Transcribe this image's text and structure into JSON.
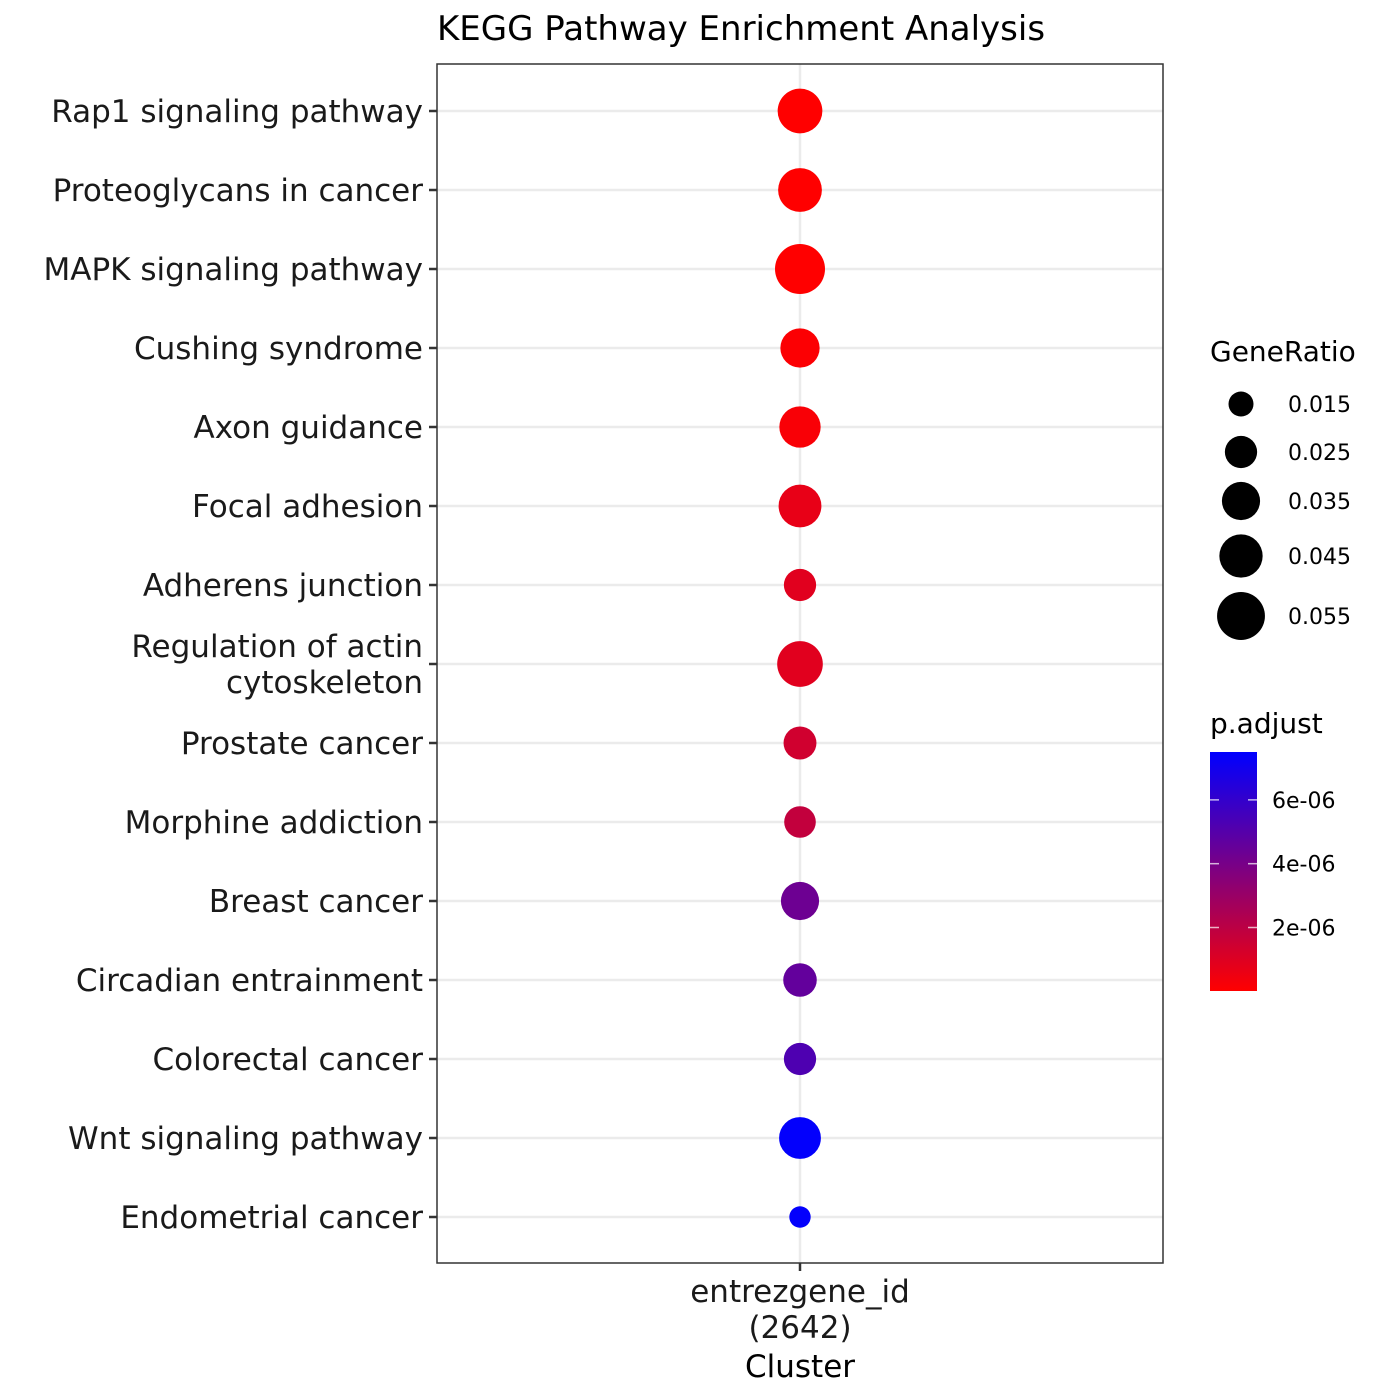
{
  "chart_data": {
    "type": "scatter",
    "title": "KEGG Pathway Enrichment Analysis",
    "x_category": "entrezgene_id\n(2642)",
    "xlabel": "Cluster",
    "ylabel": "",
    "points": [
      {
        "term": "Rap1 signaling pathway",
        "gene_ratio": 0.048,
        "p_adjust": 1e-08
      },
      {
        "term": "Proteoglycans in cancer",
        "gene_ratio": 0.046,
        "p_adjust": 1e-08
      },
      {
        "term": "MAPK signaling pathway",
        "gene_ratio": 0.06,
        "p_adjust": 2e-08
      },
      {
        "term": "Cushing syndrome",
        "gene_ratio": 0.037,
        "p_adjust": 1e-07
      },
      {
        "term": "Axon guidance",
        "gene_ratio": 0.041,
        "p_adjust": 2e-07
      },
      {
        "term": "Focal adhesion",
        "gene_ratio": 0.044,
        "p_adjust": 7e-07
      },
      {
        "term": "Adherens junction",
        "gene_ratio": 0.025,
        "p_adjust": 9e-07
      },
      {
        "term": "Regulation of actin\ncytoskeleton",
        "gene_ratio": 0.05,
        "p_adjust": 9e-07
      },
      {
        "term": "Prostate cancer",
        "gene_ratio": 0.026,
        "p_adjust": 1.4e-06
      },
      {
        "term": "Morphine addiction",
        "gene_ratio": 0.024,
        "p_adjust": 1.8e-06
      },
      {
        "term": "Breast cancer",
        "gene_ratio": 0.035,
        "p_adjust": 4.3e-06
      },
      {
        "term": "Circadian entrainment",
        "gene_ratio": 0.027,
        "p_adjust": 4.6e-06
      },
      {
        "term": "Colorectal cancer",
        "gene_ratio": 0.025,
        "p_adjust": 5.2e-06
      },
      {
        "term": "Wnt signaling pathway",
        "gene_ratio": 0.042,
        "p_adjust": 7.4e-06
      },
      {
        "term": "Endometrial cancer",
        "gene_ratio": 0.011,
        "p_adjust": 7.4e-06
      }
    ],
    "size_legend": {
      "title": "GeneRatio",
      "breaks": [
        0.015,
        0.025,
        0.035,
        0.045,
        0.055
      ],
      "labels": [
        "0.015",
        "0.025",
        "0.035",
        "0.045",
        "0.055"
      ]
    },
    "color_legend": {
      "title": "p.adjust",
      "range": [
        1e-08,
        7.5e-06
      ],
      "low_color": "#ff0000",
      "high_color": "#0000ff",
      "breaks": [
        2e-06,
        4e-06,
        6e-06
      ],
      "labels": [
        "2e-06",
        "4e-06",
        "6e-06"
      ]
    },
    "grid": true,
    "legend_position": "right"
  }
}
